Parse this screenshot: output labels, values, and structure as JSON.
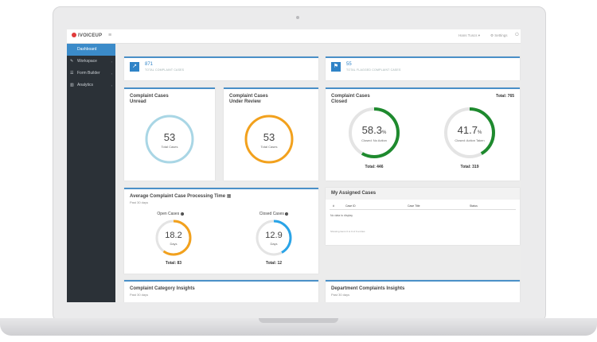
{
  "topbar": {
    "brand": "IVOICEUP",
    "hamburger_icon": "menu-icon",
    "user": "Hans Tuscs ▾",
    "settings": "⚙ Settings",
    "power_icon": "power-icon"
  },
  "sidebar": {
    "items": [
      {
        "label": "Dashboard",
        "icon": "dashboard-icon",
        "active": true
      },
      {
        "label": "Workspace",
        "icon": "workspace-icon"
      },
      {
        "label": "Form Builder",
        "icon": "form-builder-icon"
      },
      {
        "label": "Analytics",
        "icon": "analytics-icon"
      }
    ]
  },
  "banners": [
    {
      "value": "871",
      "label": "TOTAL COMPLAINT CASES",
      "icon": "chart-icon"
    },
    {
      "value": "55",
      "label": "TOTAL FLAGGED COMPLAINT CASES",
      "icon": "flag-icon"
    }
  ],
  "unread": {
    "title_line1": "Complaint Cases",
    "title_line2": "Unread",
    "value": "53",
    "label": "Total Cases",
    "color": "#a9d6e5"
  },
  "review": {
    "title_line1": "Complaint Cases",
    "title_line2": "Under Review",
    "value": "53",
    "label": "Total Cases",
    "color": "#f2a11d"
  },
  "closed": {
    "title_line1": "Complaint Cases",
    "title_line2": "Closed",
    "total": "Total: 765",
    "no_action": {
      "value": "58.3",
      "unit": "%",
      "label": "Closed: No Action",
      "total": "Total: 446",
      "fraction": 0.583
    },
    "action_taken": {
      "value": "41.7",
      "unit": "%",
      "label": "Closed: Action Taken",
      "total": "Total: 319",
      "fraction": 0.417
    }
  },
  "processing": {
    "title": "Average Complaint Case Processing Time",
    "sub": "Past 30 days",
    "open": {
      "head": "Open Cases",
      "value": "18.2",
      "unit": "Days",
      "total": "Total: 83",
      "color": "#f2a11d",
      "fraction": 0.6
    },
    "closed": {
      "head": "Closed Cases",
      "value": "12.9",
      "unit": "Days",
      "total": "Total: 12",
      "color": "#2aa4e8",
      "fraction": 0.42
    }
  },
  "assigned": {
    "title": "My Assigned Cases",
    "columns": [
      "#",
      "Case ID",
      "Case Title",
      "Status"
    ],
    "empty": "No data to display",
    "showing": "Showing items 0 to 0 of 0 entries"
  },
  "category": {
    "title": "Complaint Category Insights",
    "sub": "Past 30 days"
  },
  "department": {
    "title": "Department Complaints Insights",
    "sub": "Past 30 days"
  }
}
